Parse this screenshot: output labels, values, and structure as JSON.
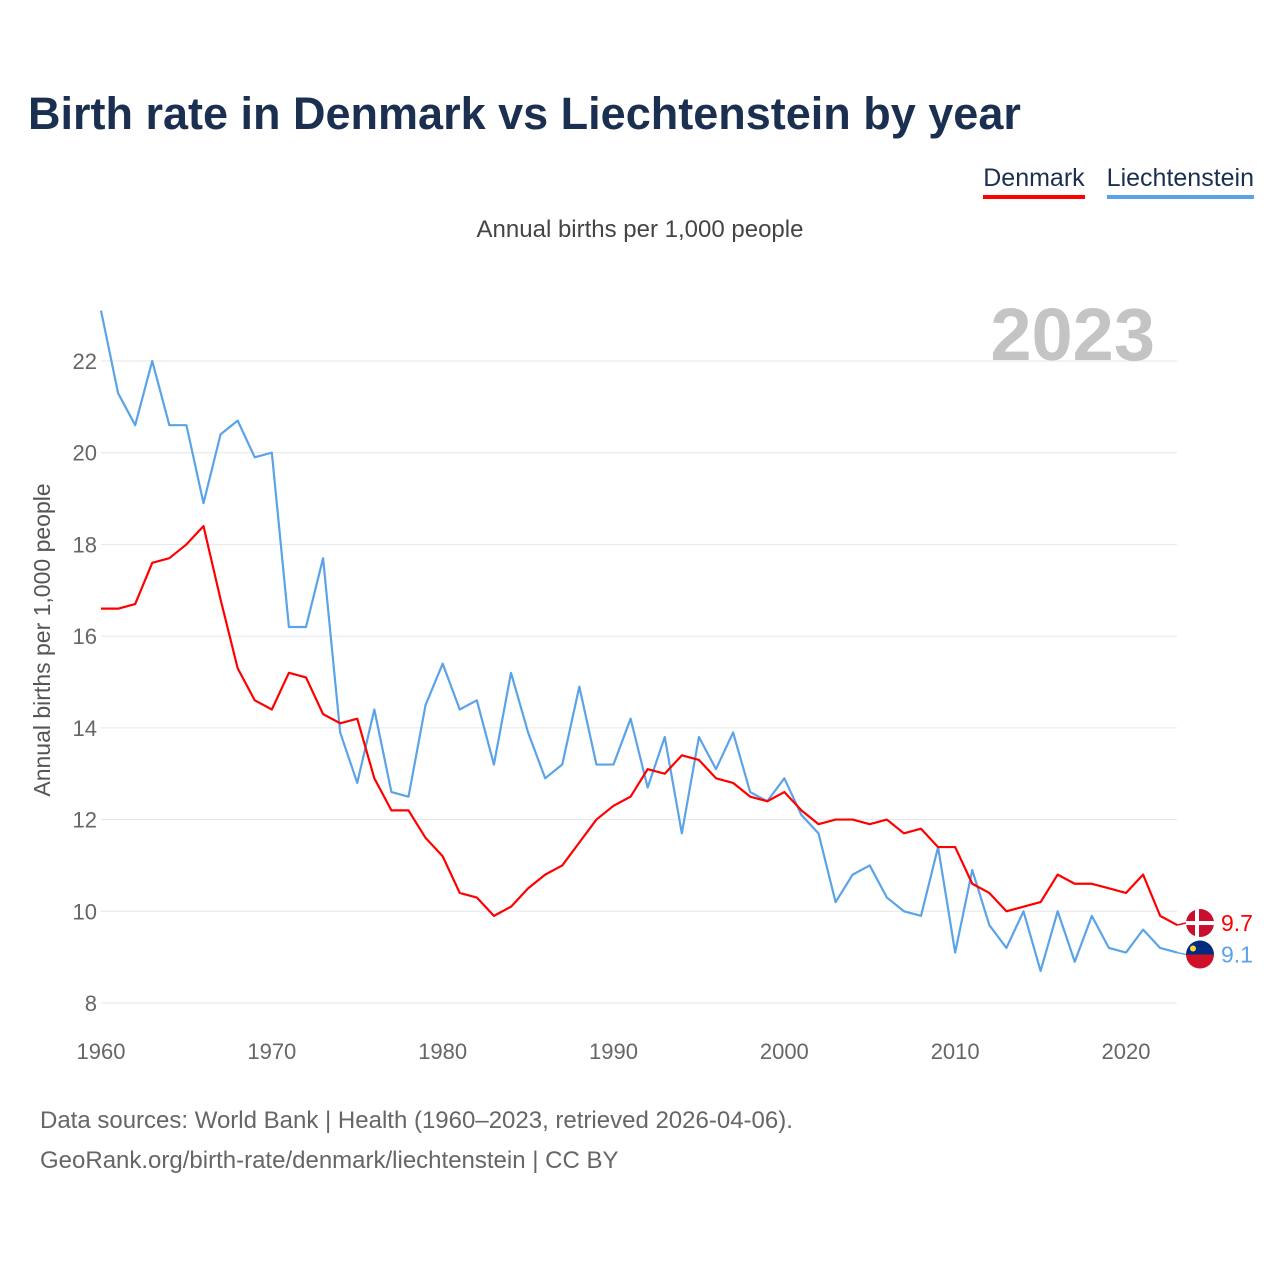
{
  "chart_data": {
    "type": "line",
    "title": "Birth rate in Denmark vs Liechtenstein by year",
    "subtitle": "Annual births per 1,000 people",
    "ylabel": "Annual births per 1,000 people",
    "xlabel": "",
    "year_label": "2023",
    "xlim": [
      1960,
      2023
    ],
    "ylim": [
      8,
      23.2
    ],
    "xticks": [
      "1960",
      "1970",
      "1980",
      "1990",
      "2000",
      "2010",
      "2020"
    ],
    "yticks": [
      "8",
      "10",
      "12",
      "14",
      "16",
      "18",
      "20",
      "22"
    ],
    "grid": true,
    "legend_position": "top-right",
    "x": [
      1960,
      1961,
      1962,
      1963,
      1964,
      1965,
      1966,
      1967,
      1968,
      1969,
      1970,
      1971,
      1972,
      1973,
      1974,
      1975,
      1976,
      1977,
      1978,
      1979,
      1980,
      1981,
      1982,
      1983,
      1984,
      1985,
      1986,
      1987,
      1988,
      1989,
      1990,
      1991,
      1992,
      1993,
      1994,
      1995,
      1996,
      1997,
      1998,
      1999,
      2000,
      2001,
      2002,
      2003,
      2004,
      2005,
      2006,
      2007,
      2008,
      2009,
      2010,
      2011,
      2012,
      2013,
      2014,
      2015,
      2016,
      2017,
      2018,
      2019,
      2020,
      2021,
      2022,
      2023
    ],
    "series": [
      {
        "name": "Denmark",
        "color": "#ff0000",
        "end_label": "9.7",
        "values": [
          16.6,
          16.6,
          16.7,
          17.6,
          17.7,
          18.0,
          18.4,
          16.8,
          15.3,
          14.6,
          14.4,
          15.2,
          15.1,
          14.3,
          14.1,
          14.2,
          12.9,
          12.2,
          12.2,
          11.6,
          11.2,
          10.4,
          10.3,
          9.9,
          10.1,
          10.5,
          10.8,
          11.0,
          11.5,
          12.0,
          12.3,
          12.5,
          13.1,
          13.0,
          13.4,
          13.3,
          12.9,
          12.8,
          12.5,
          12.4,
          12.6,
          12.2,
          11.9,
          12.0,
          12.0,
          11.9,
          12.0,
          11.7,
          11.8,
          11.4,
          11.4,
          10.6,
          10.4,
          10.0,
          10.1,
          10.2,
          10.8,
          10.6,
          10.6,
          10.5,
          10.4,
          10.8,
          9.9,
          9.7
        ]
      },
      {
        "name": "Liechtenstein",
        "color": "#5ba3e8",
        "end_label": "9.1",
        "values": [
          23.1,
          21.3,
          20.6,
          22.0,
          20.6,
          20.6,
          18.9,
          20.4,
          20.7,
          19.9,
          20.0,
          16.2,
          16.2,
          17.7,
          13.9,
          12.8,
          14.4,
          12.6,
          12.5,
          14.5,
          15.4,
          14.4,
          14.6,
          13.2,
          15.2,
          13.9,
          12.9,
          13.2,
          14.9,
          13.2,
          13.2,
          14.2,
          12.7,
          13.8,
          11.7,
          13.8,
          13.1,
          13.9,
          12.6,
          12.4,
          12.9,
          12.1,
          11.7,
          10.2,
          10.8,
          11.0,
          10.3,
          10.0,
          9.9,
          11.4,
          9.1,
          10.9,
          9.7,
          9.2,
          10.0,
          8.7,
          10.0,
          8.9,
          9.9,
          9.2,
          9.1,
          9.6,
          9.2,
          9.1
        ]
      }
    ]
  },
  "footer": {
    "line1": "Data sources: World Bank | Health (1960–2023, retrieved 2026-04-06).",
    "line2": "GeoRank.org/birth-rate/denmark/liechtenstein | CC BY"
  }
}
